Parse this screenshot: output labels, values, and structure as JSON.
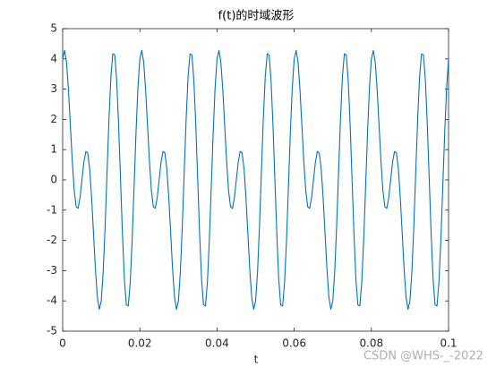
{
  "chart_data": {
    "type": "line",
    "title": "f(t)的时域波形",
    "x_label": "t",
    "watermark": "CSDN @WHS-_-2022",
    "color": "#0072bd",
    "grid": false,
    "xlim": [
      0,
      0.1
    ],
    "xticks": [
      0,
      0.02,
      0.04,
      0.06,
      0.08,
      0.1
    ],
    "ylim": [
      -5,
      5
    ],
    "yticks": [
      -5,
      -4,
      -3,
      -2,
      -1,
      0,
      1,
      2,
      3,
      4,
      5
    ],
    "x": [
      0,
      0.0005,
      0.001,
      0.0015,
      0.002,
      0.0025,
      0.003,
      0.0035,
      0.004,
      0.0045,
      0.005,
      0.0055,
      0.006,
      0.0065,
      0.007,
      0.0075,
      0.008,
      0.0085,
      0.009,
      0.0095,
      0.01,
      0.0105,
      0.011,
      0.0115,
      0.012,
      0.0125,
      0.013,
      0.0135,
      0.014,
      0.0145,
      0.015,
      0.0155,
      0.016,
      0.0165,
      0.017,
      0.0175,
      0.018,
      0.0185,
      0.019,
      0.0195,
      0.02,
      0.0205,
      0.021,
      0.0215,
      0.022,
      0.0225,
      0.023,
      0.0235,
      0.024,
      0.0245,
      0.025,
      0.0255,
      0.026,
      0.0265,
      0.027,
      0.0275,
      0.028,
      0.0285,
      0.029,
      0.0295,
      0.03,
      0.0305,
      0.031,
      0.0315,
      0.032,
      0.0325,
      0.033,
      0.0335,
      0.034,
      0.0345,
      0.035,
      0.0355,
      0.036,
      0.0365,
      0.037,
      0.0375,
      0.038,
      0.0385,
      0.039,
      0.0395,
      0.04,
      0.0405,
      0.041,
      0.0415,
      0.042,
      0.0425,
      0.043,
      0.0435,
      0.044,
      0.0445,
      0.045,
      0.0455,
      0.046,
      0.0465,
      0.047,
      0.0475,
      0.048,
      0.0485,
      0.049,
      0.0495,
      0.05,
      0.0505,
      0.051,
      0.0515,
      0.052,
      0.0525,
      0.053,
      0.0535,
      0.054,
      0.0545,
      0.055,
      0.0555,
      0.056,
      0.0565,
      0.057,
      0.0575,
      0.058,
      0.0585,
      0.059,
      0.0595,
      0.06,
      0.0605,
      0.061,
      0.0615,
      0.062,
      0.0625,
      0.063,
      0.0635,
      0.064,
      0.0645,
      0.065,
      0.0655,
      0.066,
      0.0665,
      0.067,
      0.0675,
      0.068,
      0.0685,
      0.069,
      0.0695,
      0.07,
      0.0705,
      0.071,
      0.0715,
      0.072,
      0.0725,
      0.073,
      0.0735,
      0.074,
      0.0745,
      0.075,
      0.0755,
      0.076,
      0.0765,
      0.077,
      0.0775,
      0.078,
      0.0785,
      0.079,
      0.0795,
      0.08,
      0.0805,
      0.081,
      0.0815,
      0.082,
      0.0825,
      0.083,
      0.0835,
      0.084,
      0.0845,
      0.085,
      0.0855,
      0.086,
      0.0865,
      0.087,
      0.0875,
      0.088,
      0.0885,
      0.089,
      0.0895,
      0.09,
      0.0905,
      0.091,
      0.0915,
      0.092,
      0.0925,
      0.093,
      0.0935,
      0.094,
      0.0945,
      0.095,
      0.0955,
      0.096,
      0.0965,
      0.097,
      0.0975,
      0.098,
      0.0985,
      0.099,
      0.0995,
      0.1
    ],
    "values": [
      4.0,
      4.28,
      3.89,
      2.98,
      1.78,
      0.59,
      -0.36,
      -0.89,
      -0.94,
      -0.59,
      0,
      0.59,
      0.94,
      0.89,
      0.36,
      -0.59,
      -1.78,
      -2.98,
      -3.89,
      -4.28,
      -4.0,
      -3.04,
      -1.54,
      0.26,
      2.02,
      3.41,
      4.17,
      4.13,
      3.29,
      1.82,
      0,
      -1.82,
      -3.29,
      -4.13,
      -4.17,
      -3.41,
      -2.02,
      -0.26,
      1.54,
      3.04,
      4.0,
      4.28,
      3.89,
      2.98,
      1.78,
      0.59,
      -0.36,
      -0.89,
      -0.94,
      -0.59,
      0,
      0.59,
      0.94,
      0.89,
      0.36,
      -0.59,
      -1.78,
      -2.98,
      -3.89,
      -4.28,
      -4.0,
      -3.04,
      -1.54,
      0.26,
      2.02,
      3.41,
      4.17,
      4.13,
      3.29,
      1.82,
      0,
      -1.82,
      -3.29,
      -4.13,
      -4.17,
      -3.41,
      -2.02,
      -0.26,
      1.54,
      3.04,
      4.0,
      4.28,
      3.89,
      2.98,
      1.78,
      0.59,
      -0.36,
      -0.89,
      -0.94,
      -0.59,
      0,
      0.59,
      0.94,
      0.89,
      0.36,
      -0.59,
      -1.78,
      -2.98,
      -3.89,
      -4.28,
      -4.0,
      -3.04,
      -1.54,
      0.26,
      2.02,
      3.41,
      4.17,
      4.13,
      3.29,
      1.82,
      0,
      -1.82,
      -3.29,
      -4.13,
      -4.17,
      -3.41,
      -2.02,
      -0.26,
      1.54,
      3.04,
      4.0,
      4.28,
      3.89,
      2.98,
      1.78,
      0.59,
      -0.36,
      -0.89,
      -0.94,
      -0.59,
      0,
      0.59,
      0.94,
      0.89,
      0.36,
      -0.59,
      -1.78,
      -2.98,
      -3.89,
      -4.28,
      -4.0,
      -3.04,
      -1.54,
      0.26,
      2.02,
      3.41,
      4.17,
      4.13,
      3.29,
      1.82,
      0,
      -1.82,
      -3.29,
      -4.13,
      -4.17,
      -3.41,
      -2.02,
      -0.26,
      1.54,
      3.04,
      4.0,
      4.28,
      3.89,
      2.98,
      1.78,
      0.59,
      -0.36,
      -0.89,
      -0.94,
      -0.59,
      0,
      0.59,
      0.94,
      0.89,
      0.36,
      -0.59,
      -1.78,
      -2.98,
      -3.89,
      -4.28,
      -4.0,
      -3.04,
      -1.54,
      0.26,
      2.02,
      3.41,
      4.17,
      4.13,
      3.29,
      1.82,
      0,
      -1.82,
      -3.29,
      -4.13,
      -4.17,
      -3.41,
      -2.02,
      -0.26,
      1.54,
      3.04,
      4.0
    ]
  }
}
